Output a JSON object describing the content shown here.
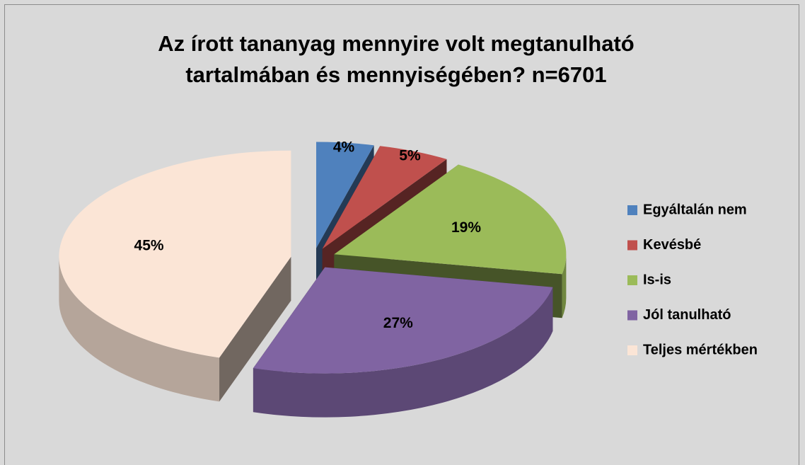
{
  "chart_data": {
    "type": "pie3d",
    "title": "Az írott tananyag mennyire volt megtanulható tartalmában és mennyiségében? n=6701",
    "categories": [
      "Egyáltalán nem",
      "Kevésbé",
      "Is-is",
      "Jól tanulható",
      "Teljes mértékben"
    ],
    "values": [
      4,
      5,
      19,
      27,
      45
    ],
    "value_labels": [
      "4%",
      "5%",
      "19%",
      "27%",
      "45%"
    ],
    "colors": [
      "#4f81bd",
      "#c0504d",
      "#9bbb59",
      "#8064a2",
      "#fbe5d6"
    ],
    "legend": "right"
  }
}
